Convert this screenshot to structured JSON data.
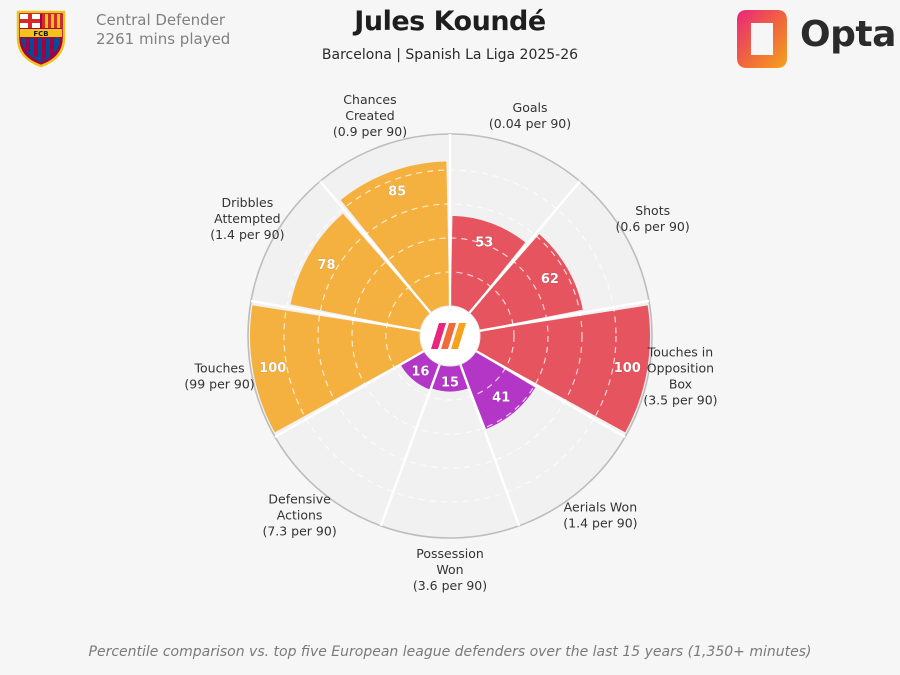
{
  "header": {
    "title": "Jules Koundé",
    "subtitle": "Barcelona | Spanish La Liga 2025-26",
    "role": "Central Defender",
    "minutes": "2261 mins played",
    "badge_text": "FCB",
    "brand": "Opta"
  },
  "footnote": "Percentile comparison vs. top five European league defenders over the last 15 years (1,350+ minutes)",
  "chart_data": {
    "type": "radial-bar",
    "scale": [
      0,
      100
    ],
    "grid": true,
    "categories": [
      {
        "name": "Goals",
        "per90": "(0.04 per 90)",
        "value": 53,
        "group": "attack"
      },
      {
        "name": "Shots",
        "per90": "(0.6 per 90)",
        "value": 62,
        "group": "attack"
      },
      {
        "name": "Touches in Opposition Box",
        "per90": "(3.5 per 90)",
        "value": 100,
        "group": "attack"
      },
      {
        "name": "Aerials Won",
        "per90": "(1.4 per 90)",
        "value": 41,
        "group": "defence"
      },
      {
        "name": "Possession Won",
        "per90": "(3.6 per 90)",
        "value": 15,
        "group": "defence"
      },
      {
        "name": "Defensive Actions",
        "per90": "(7.3 per 90)",
        "value": 16,
        "group": "defence"
      },
      {
        "name": "Touches",
        "per90": "(99 per 90)",
        "value": 100,
        "group": "possession"
      },
      {
        "name": "Dribbles Attempted",
        "per90": "(1.4 per 90)",
        "value": 78,
        "group": "possession"
      },
      {
        "name": "Chances Created",
        "per90": "(0.9 per 90)",
        "value": 85,
        "group": "possession"
      }
    ],
    "colors": {
      "attack": "#e5545f",
      "defence": "#b336c7",
      "possession": "#f5b13f",
      "background": "#f6f6f6",
      "disc": "#f1f1f1",
      "grid": "#d9d9d9"
    }
  }
}
